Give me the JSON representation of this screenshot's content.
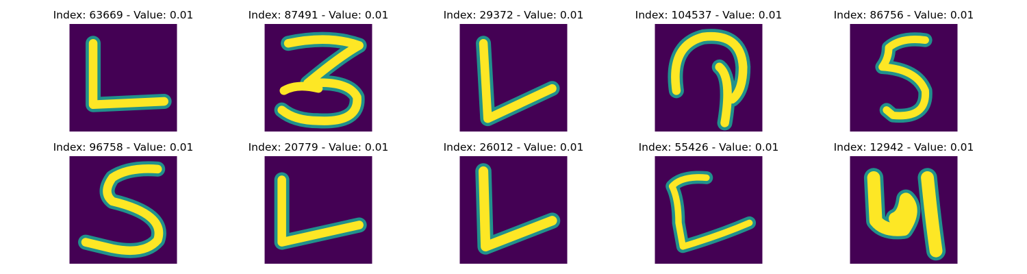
{
  "colors": {
    "background": "#440154",
    "stroke_mid": "#21918c",
    "stroke_core": "#fde725"
  },
  "panels": [
    {
      "title": "Index: 63669 - Value: 0.01",
      "glyph": "L-shape-icon"
    },
    {
      "title": "Index: 87491 - Value: 0.01",
      "glyph": "three-shape-icon"
    },
    {
      "title": "Index: 29372 - Value: 0.01",
      "glyph": "V-shape-icon"
    },
    {
      "title": "Index: 104537 - Value: 0.01",
      "glyph": "loop-shape-icon"
    },
    {
      "title": "Index: 86756 - Value: 0.01",
      "glyph": "five-shape-icon"
    },
    {
      "title": "Index: 96758 - Value: 0.01",
      "glyph": "five-shape-icon"
    },
    {
      "title": "Index: 20779 - Value: 0.01",
      "glyph": "L-shape-icon"
    },
    {
      "title": "Index: 26012 - Value: 0.01",
      "glyph": "V-shape-icon"
    },
    {
      "title": "Index: 55426 - Value: 0.01",
      "glyph": "C-shape-icon"
    },
    {
      "title": "Index: 12942 - Value: 0.01",
      "glyph": "four-shape-icon"
    }
  ]
}
